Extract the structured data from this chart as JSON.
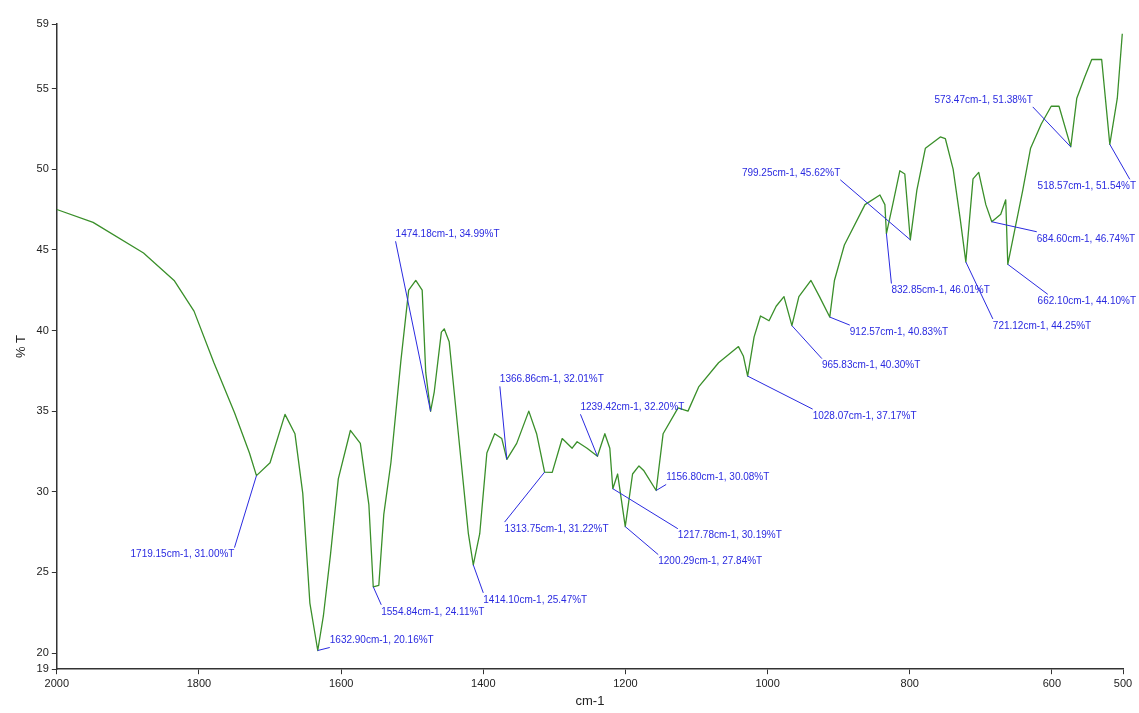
{
  "chart_data": {
    "type": "line",
    "xlabel": "cm-1",
    "ylabel": "% T",
    "xlim": [
      2000,
      500
    ],
    "xticks": [
      2000,
      1800,
      1600,
      1400,
      1200,
      1000,
      800,
      600,
      500
    ],
    "ylim": [
      19,
      59
    ],
    "yticks": [
      19,
      20,
      25,
      30,
      35,
      40,
      45,
      50,
      55,
      59
    ],
    "grid": false,
    "legend": false,
    "marker": "none",
    "series": [
      {
        "color": "#3a8f2a",
        "x": [
          2000,
          1949,
          1878,
          1835,
          1807,
          1779,
          1750,
          1729,
          1719.15,
          1700,
          1679,
          1665,
          1654,
          1644,
          1632.9,
          1625,
          1615,
          1604,
          1587,
          1573,
          1561,
          1554.84,
          1547,
          1540,
          1530,
          1516,
          1505,
          1495,
          1486,
          1481,
          1474.18,
          1469,
          1459,
          1455,
          1448,
          1441,
          1431,
          1421,
          1414.1,
          1405,
          1395,
          1384,
          1374,
          1366.86,
          1353,
          1336,
          1325,
          1313.75,
          1303,
          1289,
          1275,
          1268,
          1254,
          1239.42,
          1229,
          1222,
          1217.78,
          1211,
          1200.29,
          1190,
          1181,
          1174,
          1156.8,
          1147,
          1126,
          1112,
          1097,
          1069,
          1041,
          1034,
          1028.07,
          1019,
          1010,
          998,
          988,
          977,
          965.83,
          956,
          939,
          927,
          912.57,
          906,
          892,
          863,
          842,
          835,
          832.85,
          824,
          814,
          807,
          799.25,
          790,
          778,
          757,
          750,
          739,
          729,
          721.12,
          711,
          703,
          693,
          684.6,
          672,
          665,
          662.1,
          641,
          630,
          615,
          601,
          590,
          573.47,
          565,
          554,
          544,
          530,
          518.57,
          508,
          501
        ],
        "values": [
          47.5,
          46.7,
          44.8,
          43.1,
          41.2,
          38.0,
          34.9,
          32.4,
          31.0,
          31.8,
          34.8,
          33.6,
          29.9,
          23.1,
          20.16,
          22.3,
          26.1,
          30.8,
          33.8,
          33.0,
          29.2,
          24.11,
          24.2,
          28.6,
          31.8,
          38.1,
          42.5,
          43.1,
          42.5,
          37.4,
          34.99,
          36.2,
          39.9,
          40.1,
          39.3,
          36.2,
          31.8,
          27.4,
          25.47,
          27.4,
          32.4,
          33.6,
          33.3,
          32.01,
          33.0,
          35.0,
          33.6,
          31.22,
          31.2,
          33.3,
          32.7,
          33.1,
          32.7,
          32.2,
          33.6,
          32.7,
          30.19,
          31.1,
          27.84,
          31.1,
          31.6,
          31.3,
          30.08,
          33.6,
          35.2,
          35.0,
          36.5,
          38.0,
          39.0,
          38.4,
          37.17,
          39.6,
          40.9,
          40.6,
          41.5,
          42.1,
          40.3,
          42.1,
          43.1,
          42.1,
          40.83,
          43.1,
          45.3,
          47.8,
          48.4,
          47.8,
          46.01,
          47.8,
          49.9,
          49.7,
          45.62,
          48.7,
          51.3,
          52.0,
          51.9,
          50.0,
          46.9,
          44.25,
          49.4,
          49.8,
          47.8,
          46.74,
          47.2,
          48.1,
          44.1,
          48.7,
          51.3,
          52.8,
          53.9,
          53.9,
          51.38,
          54.4,
          55.7,
          56.8,
          56.8,
          51.54,
          54.4,
          58.4
        ]
      }
    ],
    "annotations": [
      {
        "text": "1719.15cm-1, 31.00%T",
        "x": 1719.15,
        "y": 31.0
      },
      {
        "text": "1632.90cm-1, 20.16%T",
        "x": 1632.9,
        "y": 20.16
      },
      {
        "text": "1554.84cm-1, 24.11%T",
        "x": 1554.84,
        "y": 24.11
      },
      {
        "text": "1474.18cm-1, 34.99%T",
        "x": 1474.18,
        "y": 34.99
      },
      {
        "text": "1414.10cm-1, 25.47%T",
        "x": 1414.1,
        "y": 25.47
      },
      {
        "text": "1366.86cm-1, 32.01%T",
        "x": 1366.86,
        "y": 32.01
      },
      {
        "text": "1313.75cm-1, 31.22%T",
        "x": 1313.75,
        "y": 31.22
      },
      {
        "text": "1239.42cm-1, 32.20%T",
        "x": 1239.42,
        "y": 32.2
      },
      {
        "text": "1217.78cm-1, 30.19%T",
        "x": 1217.78,
        "y": 30.19
      },
      {
        "text": "1200.29cm-1, 27.84%T",
        "x": 1200.29,
        "y": 27.84
      },
      {
        "text": "1156.80cm-1, 30.08%T",
        "x": 1156.8,
        "y": 30.08
      },
      {
        "text": "1028.07cm-1, 37.17%T",
        "x": 1028.07,
        "y": 37.17
      },
      {
        "text": "965.83cm-1, 40.30%T",
        "x": 965.83,
        "y": 40.3
      },
      {
        "text": "912.57cm-1, 40.83%T",
        "x": 912.57,
        "y": 40.83
      },
      {
        "text": "832.85cm-1, 46.01%T",
        "x": 832.85,
        "y": 46.01
      },
      {
        "text": "799.25cm-1, 45.62%T",
        "x": 799.25,
        "y": 45.62
      },
      {
        "text": "721.12cm-1, 44.25%T",
        "x": 721.12,
        "y": 44.25
      },
      {
        "text": "684.60cm-1, 46.74%T",
        "x": 684.6,
        "y": 46.74
      },
      {
        "text": "662.10cm-1, 44.10%T",
        "x": 662.1,
        "y": 44.1
      },
      {
        "text": "573.47cm-1, 51.38%T",
        "x": 573.47,
        "y": 51.38
      },
      {
        "text": "518.57cm-1, 51.54%T",
        "x": 518.57,
        "y": 51.54
      }
    ]
  }
}
